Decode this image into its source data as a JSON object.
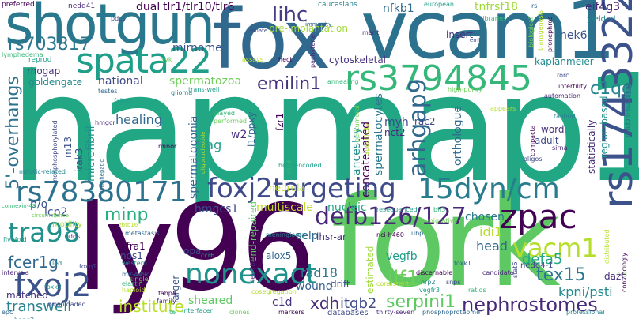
{
  "words": [
    {
      "id": "hapmap1",
      "text": "hapmap1",
      "color": "#22a784"
    },
    {
      "id": "fork",
      "text": "fork",
      "color": "#5ec962"
    },
    {
      "id": "ly96",
      "text": "ly96",
      "color": "#440154"
    },
    {
      "id": "fox",
      "text": "fox",
      "color": "#31688e"
    },
    {
      "id": "vcam1-top",
      "text": "vcam1",
      "color": "#2c728e"
    },
    {
      "id": "shotgun",
      "text": "shotgun",
      "color": "#2a788e"
    },
    {
      "id": "spata22",
      "text": "spata22",
      "color": "#1f9e89"
    },
    {
      "id": "rs3794845",
      "text": "rs3794845",
      "color": "#35b779"
    },
    {
      "id": "rs17433222",
      "text": "rs17433222",
      "color": "#3b528b"
    },
    {
      "id": "rs78380171",
      "text": "rs78380171",
      "color": "#2c728e"
    },
    {
      "id": "foxj2targeting",
      "text": "foxj2targeting",
      "color": "#3e4a89"
    },
    {
      "id": "15dyn-cm",
      "text": "15dyn/cm",
      "color": "#287c8e"
    },
    {
      "id": "zpac",
      "text": "zpac",
      "color": "#440154"
    },
    {
      "id": "nonexact",
      "text": "nonexact",
      "color": "#20928c"
    },
    {
      "id": "fxoj2",
      "text": "fxoj2",
      "color": "#3b528b"
    },
    {
      "id": "tra98",
      "text": "tra98",
      "color": "#21918c"
    },
    {
      "id": "vacm1",
      "text": "vacm1",
      "color": "#b5de2b"
    },
    {
      "id": "defb126",
      "text": "defb126/127",
      "color": "#482878"
    },
    {
      "id": "arhgap9",
      "text": "arhgap9",
      "color": "#31688e"
    },
    {
      "id": "lihc",
      "text": "lihc",
      "color": "#433e85"
    },
    {
      "id": "rs703817",
      "text": "rs703817",
      "color": "#2a788e"
    },
    {
      "id": "emilin1",
      "text": "emilin1",
      "color": "#46327e"
    },
    {
      "id": "5-overhangs",
      "text": "5'-overhangs",
      "color": "#2c728e"
    },
    {
      "id": "c1qg",
      "text": "c1qg",
      "color": "#26828e"
    },
    {
      "id": "minp",
      "text": "minp",
      "color": "#29af7f"
    },
    {
      "id": "fcer1g",
      "text": "fcer1g",
      "color": "#31688e"
    },
    {
      "id": "ilf1",
      "text": "ilf1",
      "color": "#6ece58"
    },
    {
      "id": "nephrostomes",
      "text": "nephrostomes",
      "color": "#482878"
    },
    {
      "id": "serpini1",
      "text": "serpini1",
      "color": "#5ec962"
    },
    {
      "id": "tex15",
      "text": "tex15",
      "color": "#2a788e"
    },
    {
      "id": "transwell",
      "text": "transwell",
      "color": "#26828e"
    },
    {
      "id": "institute",
      "text": "institute",
      "color": "#b8de29"
    },
    {
      "id": "xdh",
      "text": "xdh",
      "color": "#482878"
    },
    {
      "id": "itgb2",
      "text": "itgb2",
      "color": "#3e4a89"
    },
    {
      "id": "defa5",
      "text": "defa5",
      "color": "#22a884"
    },
    {
      "id": "kpni-psti",
      "text": "kpni/psti",
      "color": "#238a8d"
    },
    {
      "id": "mirnome",
      "text": "mirnome",
      "color": "#3b528b"
    },
    {
      "id": "healing",
      "text": "healing",
      "color": "#31688e"
    },
    {
      "id": "tag",
      "text": "tag",
      "color": "#1f9e89"
    },
    {
      "id": "w2",
      "text": "w2",
      "color": "#472d7b"
    },
    {
      "id": "hmgcs1",
      "text": "hmgcs1",
      "color": "#3e4a89"
    },
    {
      "id": "multiscale",
      "text": "multiscale",
      "color": "#bddf26"
    },
    {
      "id": "nucleic",
      "text": "nucleic",
      "color": "#21a685"
    },
    {
      "id": "myh",
      "text": "myh",
      "color": "#3e4a89"
    },
    {
      "id": "head",
      "text": "head",
      "color": "#31688e"
    },
    {
      "id": "idi1",
      "text": "idi1",
      "color": "#b5de2b"
    },
    {
      "id": "selp",
      "text": "selp",
      "color": "#31688e"
    },
    {
      "id": "chosen",
      "text": "chosen",
      "color": "#2a788e"
    },
    {
      "id": "vegfb",
      "text": "vegfb",
      "color": "#1f9e89"
    },
    {
      "id": "rad18",
      "text": "rad18",
      "color": "#2a788e"
    },
    {
      "id": "wound",
      "text": "wound",
      "color": "#355f8d"
    },
    {
      "id": "c1d",
      "text": "c1d",
      "color": "#46327e"
    },
    {
      "id": "sheared",
      "text": "sheared",
      "color": "#5ec962"
    },
    {
      "id": "concatenated",
      "text": "concatenated",
      "color": "#440154"
    },
    {
      "id": "spermatocytes",
      "text": "spermatocytes",
      "color": "#2a788e"
    },
    {
      "id": "orthologue",
      "text": "orthologue",
      "color": "#31688e"
    },
    {
      "id": "ancestry",
      "text": "ancestry",
      "color": "#21918c"
    },
    {
      "id": "microfibril",
      "text": "microfibril",
      "color": "#20928c"
    },
    {
      "id": "spermatogonia",
      "text": "spermatogonia",
      "color": "#31688e"
    },
    {
      "id": "spermatozoa",
      "text": "spermatozoa",
      "color": "#6ece58"
    },
    {
      "id": "national",
      "text": "national",
      "color": "#3e4a89"
    },
    {
      "id": "rhogap",
      "text": "rhogap",
      "color": "#472d7b"
    },
    {
      "id": "goldengate",
      "text": "goldengate",
      "color": "#238a8d"
    },
    {
      "id": "nfkb1",
      "text": "nfkb1",
      "color": "#31688e"
    },
    {
      "id": "tnfrsf18",
      "text": "tnfrsf18",
      "color": "#a0da39"
    },
    {
      "id": "eif4g3",
      "text": "eif4g3",
      "color": "#482878"
    },
    {
      "id": "dual",
      "text": "dual",
      "color": "#440154"
    },
    {
      "id": "tlr",
      "text": "tlr1/tlr10/tlr6",
      "color": "#440154"
    },
    {
      "id": "nek6",
      "text": "nek6",
      "color": "#3b528b"
    },
    {
      "id": "c1qg-2",
      "text": "insert",
      "color": "#46327e"
    },
    {
      "id": "kaplanmeier",
      "text": "kaplanmeier",
      "color": "#238a8d"
    },
    {
      "id": "cytoskeletal",
      "text": "cytoskeletal",
      "color": "#46327e"
    },
    {
      "id": "rac2",
      "text": "rac2",
      "color": "#3e4a89"
    },
    {
      "id": "word",
      "text": "word",
      "color": "#472d7b"
    },
    {
      "id": "adult",
      "text": "adult",
      "color": "#3e4a89"
    },
    {
      "id": "statistically",
      "text": "statistically",
      "color": "#472d7b"
    },
    {
      "id": "region-based",
      "text": "region-based",
      "color": "#21918c"
    },
    {
      "id": "fzr1",
      "text": "fzr1",
      "color": "#440154"
    },
    {
      "id": "irak3",
      "text": "irak3",
      "color": "#3e4a89"
    },
    {
      "id": "m13",
      "text": "m13",
      "color": "#3b528b"
    },
    {
      "id": "p-o",
      "text": "p/o",
      "color": "#3b528b"
    },
    {
      "id": "lcp2",
      "text": "lcp2",
      "color": "#3b528b"
    },
    {
      "id": "neurula",
      "text": "neurula",
      "color": "#c2df23"
    },
    {
      "id": "nct2",
      "text": "nct2",
      "color": "#482878"
    },
    {
      "id": "alox5",
      "text": "alox5",
      "color": "#31688e"
    },
    {
      "id": "drift",
      "text": "drift",
      "color": "#3e4a89"
    },
    {
      "id": "lhsr-ar",
      "text": "lhsr-ar",
      "color": "#46327e"
    },
    {
      "id": "gfra1",
      "text": "gfra1",
      "color": "#440154"
    },
    {
      "id": "opa",
      "text": "opa",
      "color": "#3e4a89"
    },
    {
      "id": "nos1",
      "text": "nos1",
      "color": "#3e4a89"
    },
    {
      "id": "end-repaired",
      "text": "end-repaired",
      "color": "#5ec962"
    },
    {
      "id": "larger",
      "text": "larger",
      "color": "#3b528b"
    },
    {
      "id": "dazl",
      "text": "dazl",
      "color": "#472d7b"
    },
    {
      "id": "nedd4-1",
      "text": "nedd4-1",
      "color": "#3e4a89"
    },
    {
      "id": "estimated",
      "text": "estimated",
      "color": "#a0da39"
    },
    {
      "id": "databases",
      "text": "databases",
      "color": "#3e4a89"
    },
    {
      "id": "pre-implantation",
      "text": "pre-implantation",
      "color": "#a0da39"
    },
    {
      "id": "motility",
      "text": "motility",
      "color": "#a0da39"
    },
    {
      "id": "l1-ppxy",
      "text": "l1/ppxy",
      "color": "#31688e"
    },
    {
      "id": "matched",
      "text": "matched",
      "color": "#46327e"
    }
  ],
  "minor_words": [
    "preferred",
    "nedd41",
    "pdcs",
    "immunity",
    "caucasians",
    "european",
    "libraries",
    "biological",
    "transgenesis",
    "pronephros",
    "merit",
    "emt",
    "rs",
    "yielded",
    "reprod",
    "lymphedema",
    "syk",
    "assays",
    "hect",
    "pachytene",
    "innate",
    "testes",
    "glioma",
    "trans-well",
    "annealing",
    "high-purity",
    "appears",
    "infertility",
    "automation",
    "rorc",
    "random-subclone",
    "tailbud",
    "failed",
    "played",
    "performed",
    "oligonucleotide",
    "minor",
    "hmgcr",
    "nonphosphorylated",
    "extrahepatic",
    "mitotic-related",
    "host-encoded",
    "nicd",
    "peritumoral",
    "specificity",
    "compacta",
    "sirna",
    "oligos",
    "metastasis",
    "meningioma",
    "fivefold",
    "connexin-43",
    "circumstance",
    "zbtb16",
    "nci-h460",
    "intervals",
    "odds",
    "mir-449c",
    "western",
    "ccr6",
    "elastin",
    "single",
    "haploid",
    "fahp4",
    "family",
    "downloaded",
    "epc",
    "hepg2",
    "interfacer",
    "te",
    "clones",
    "cosegregation",
    "markers",
    "thirty-seven",
    "snps",
    "phosphoproteome",
    "professional",
    "resequenced",
    "bh3",
    "migrative",
    "consistent",
    "discernable",
    "candidate",
    "stat6",
    "foxk1",
    "nrp2",
    "vegfr3",
    "ratios",
    "ccs",
    "distributed",
    "convincingly",
    "let-7b",
    "foxq1",
    "ubp",
    "led",
    "foxk2",
    "led",
    "rad18"
  ]
}
